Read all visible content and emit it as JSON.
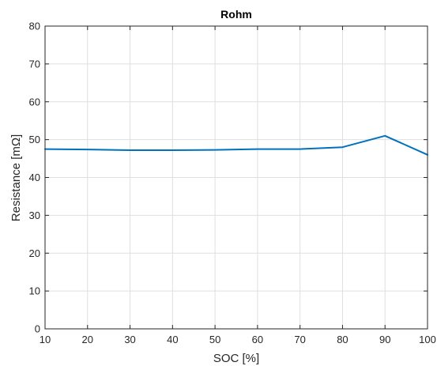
{
  "chart_data": {
    "type": "line",
    "title": "Rohm",
    "xlabel": "SOC  [%]",
    "ylabel": "Resistance  [mΩ]",
    "xlim": [
      10,
      100
    ],
    "ylim": [
      0,
      80
    ],
    "x_ticks": [
      10,
      20,
      30,
      40,
      50,
      60,
      70,
      80,
      90,
      100
    ],
    "y_ticks": [
      0,
      10,
      20,
      30,
      40,
      50,
      60,
      70,
      80
    ],
    "grid": true,
    "legend": false,
    "series": [
      {
        "color": "#0072bd",
        "x": [
          10,
          20,
          30,
          40,
          50,
          60,
          70,
          80,
          90,
          100
        ],
        "y": [
          47.5,
          47.4,
          47.2,
          47.2,
          47.3,
          47.5,
          47.5,
          48.0,
          51.0,
          46.0
        ]
      }
    ]
  }
}
